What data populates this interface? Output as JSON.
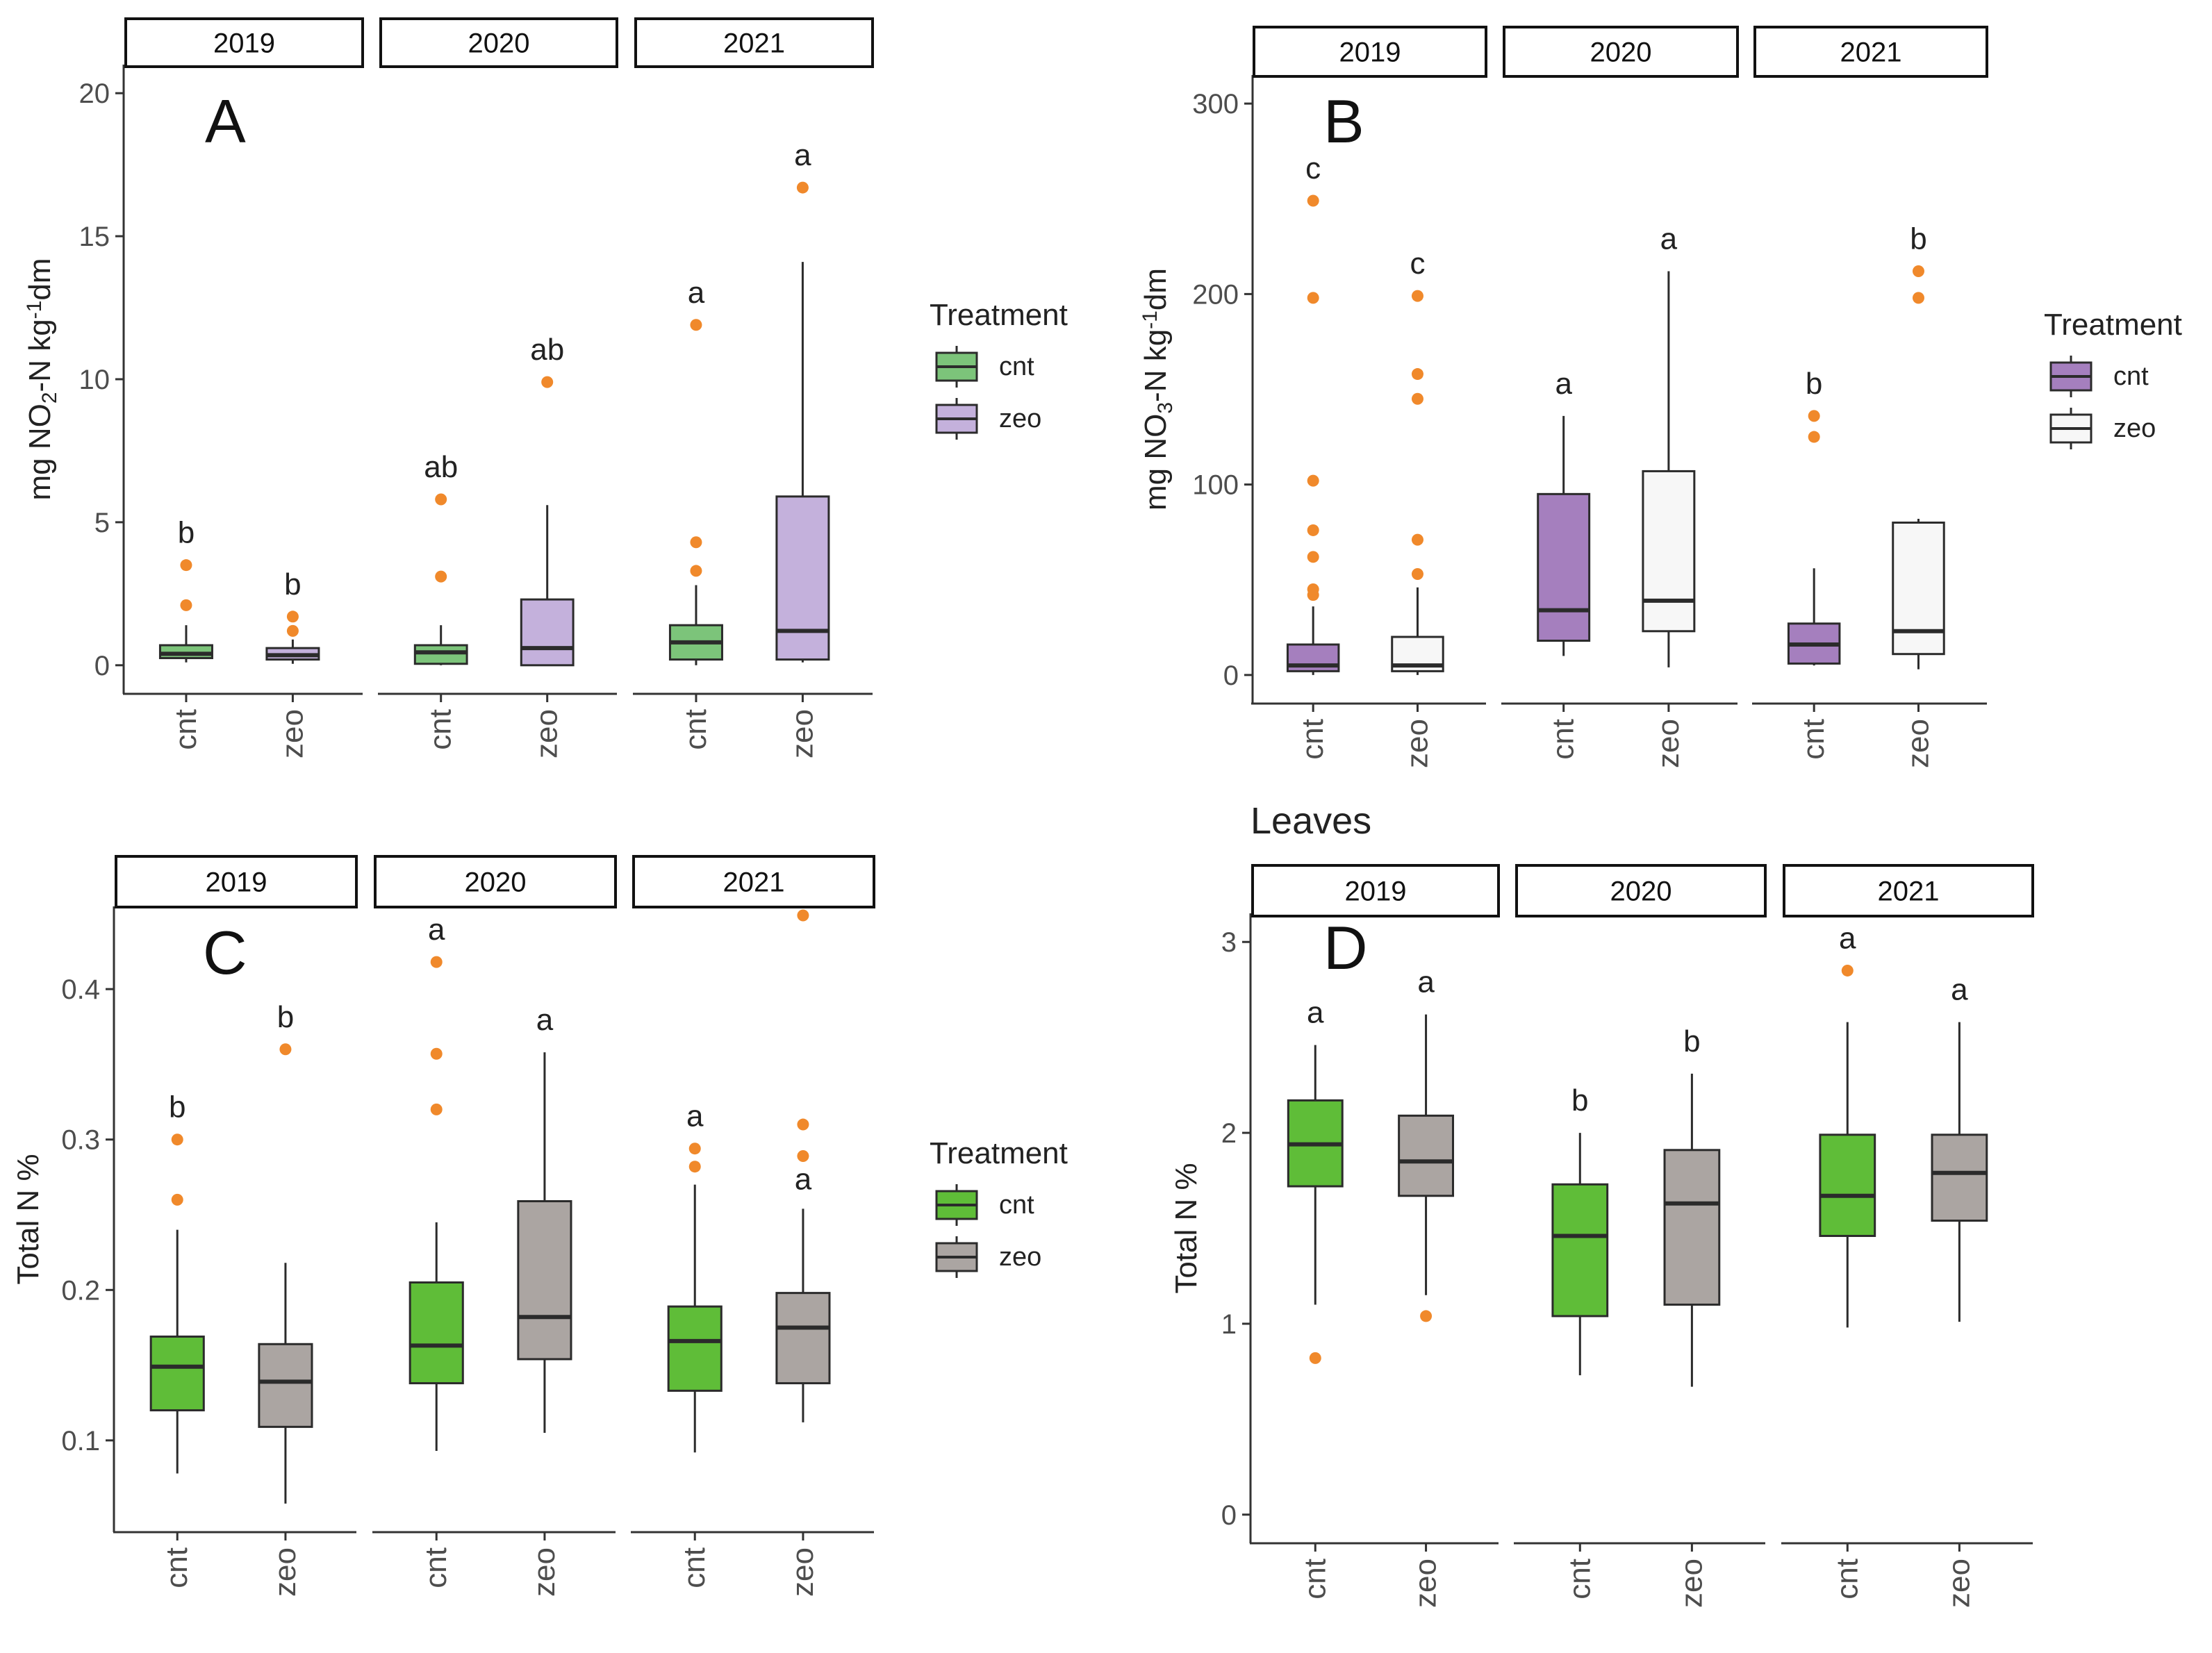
{
  "figure": {
    "palette": {
      "outlier": "#F0892B",
      "median": "#2B2B2B",
      "axis": "#333333",
      "green_light": "#7CC47A",
      "lavender": "#C4B1DC",
      "purple": "#A57FBE",
      "white_fill": "#F7F7F7",
      "green": "#5FBD38",
      "gray": "#ABA5A2"
    }
  },
  "chart_data": [
    {
      "type": "box",
      "panel_label": "A",
      "panel_title": "",
      "ylabel": "mg NO2-N kg-1dm",
      "ylim": [
        -1,
        21
      ],
      "yticks": [
        0,
        5,
        10,
        15,
        20
      ],
      "tick_labels": [
        "0",
        "5",
        "10",
        "15",
        "20"
      ],
      "facets": [
        "2019",
        "2020",
        "2021"
      ],
      "categories": [
        "cnt",
        "zeo"
      ],
      "legend": {
        "title": "Treatment",
        "entries": [
          {
            "label": "cnt",
            "color": "#7CC47A"
          },
          {
            "label": "zeo",
            "color": "#C4B1DC"
          }
        ]
      },
      "boxes": [
        {
          "facet": "2019",
          "group": "cnt",
          "whisker_low": 0.1,
          "q1": 0.25,
          "median": 0.4,
          "q3": 0.7,
          "whisker_high": 1.4,
          "outliers": [
            2.1,
            3.5
          ],
          "letter": "b"
        },
        {
          "facet": "2019",
          "group": "zeo",
          "whisker_low": 0.05,
          "q1": 0.2,
          "median": 0.35,
          "q3": 0.6,
          "whisker_high": 0.9,
          "outliers": [
            1.2,
            1.7
          ],
          "letter": "b"
        },
        {
          "facet": "2020",
          "group": "cnt",
          "whisker_low": 0.0,
          "q1": 0.05,
          "median": 0.45,
          "q3": 0.7,
          "whisker_high": 1.4,
          "outliers": [
            3.1,
            5.8
          ],
          "letter": "ab"
        },
        {
          "facet": "2020",
          "group": "zeo",
          "whisker_low": 0.0,
          "q1": 0.0,
          "median": 0.6,
          "q3": 2.3,
          "whisker_high": 5.6,
          "outliers": [
            9.9
          ],
          "letter": "ab"
        },
        {
          "facet": "2021",
          "group": "cnt",
          "whisker_low": 0.0,
          "q1": 0.2,
          "median": 0.8,
          "q3": 1.4,
          "whisker_high": 2.8,
          "outliers": [
            3.3,
            4.3,
            11.9
          ],
          "letter": "a"
        },
        {
          "facet": "2021",
          "group": "zeo",
          "whisker_low": 0.1,
          "q1": 0.2,
          "median": 1.2,
          "q3": 5.9,
          "whisker_high": 14.1,
          "outliers": [
            16.7
          ],
          "letter": "a"
        }
      ]
    },
    {
      "type": "box",
      "panel_label": "B",
      "panel_title": "",
      "ylabel": "mg NO3-N kg-1dm",
      "ylim": [
        -15,
        315
      ],
      "yticks": [
        0,
        100,
        200,
        300
      ],
      "tick_labels": [
        "0",
        "100",
        "200",
        "300"
      ],
      "facets": [
        "2019",
        "2020",
        "2021"
      ],
      "categories": [
        "cnt",
        "zeo"
      ],
      "legend": {
        "title": "Treatment",
        "entries": [
          {
            "label": "cnt",
            "color": "#A57FBE"
          },
          {
            "label": "zeo",
            "color": "#F7F7F7"
          }
        ]
      },
      "boxes": [
        {
          "facet": "2019",
          "group": "cnt",
          "whisker_low": 0,
          "q1": 2,
          "median": 5,
          "q3": 16,
          "whisker_high": 36,
          "outliers": [
            42,
            45,
            62,
            76,
            102,
            198,
            249
          ],
          "letter": "c"
        },
        {
          "facet": "2019",
          "group": "zeo",
          "whisker_low": 0,
          "q1": 2,
          "median": 5,
          "q3": 20,
          "whisker_high": 46,
          "outliers": [
            53,
            71,
            145,
            158,
            199
          ],
          "letter": "c"
        },
        {
          "facet": "2020",
          "group": "cnt",
          "whisker_low": 10,
          "q1": 18,
          "median": 34,
          "q3": 95,
          "whisker_high": 136,
          "outliers": [],
          "letter": "a"
        },
        {
          "facet": "2020",
          "group": "zeo",
          "whisker_low": 4,
          "q1": 23,
          "median": 39,
          "q3": 107,
          "whisker_high": 212,
          "outliers": [],
          "letter": "a"
        },
        {
          "facet": "2021",
          "group": "cnt",
          "whisker_low": 5,
          "q1": 6,
          "median": 16,
          "q3": 27,
          "whisker_high": 56,
          "outliers": [
            125,
            136
          ],
          "letter": "b"
        },
        {
          "facet": "2021",
          "group": "zeo",
          "whisker_low": 3,
          "q1": 11,
          "median": 23,
          "q3": 80,
          "whisker_high": 82,
          "outliers": [
            198,
            212
          ],
          "letter": "b"
        }
      ]
    },
    {
      "type": "box",
      "panel_label": "C",
      "panel_title": "",
      "ylabel": "Total N %",
      "ylim": [
        0.039,
        0.455
      ],
      "yticks": [
        0.1,
        0.2,
        0.3,
        0.4
      ],
      "tick_labels": [
        "0.1",
        "0.2",
        "0.3",
        "0.4"
      ],
      "facets": [
        "2019",
        "2020",
        "2021"
      ],
      "categories": [
        "cnt",
        "zeo"
      ],
      "legend": {
        "title": "Treatment",
        "entries": [
          {
            "label": "cnt",
            "color": "#5FBD38"
          },
          {
            "label": "zeo",
            "color": "#ABA5A2"
          }
        ]
      },
      "boxes": [
        {
          "facet": "2019",
          "group": "cnt",
          "whisker_low": 0.078,
          "q1": 0.12,
          "median": 0.149,
          "q3": 0.169,
          "whisker_high": 0.24,
          "outliers": [
            0.26,
            0.3
          ],
          "letter": "b"
        },
        {
          "facet": "2019",
          "group": "zeo",
          "whisker_low": 0.058,
          "q1": 0.109,
          "median": 0.139,
          "q3": 0.164,
          "whisker_high": 0.218,
          "outliers": [
            0.36
          ],
          "letter": "b"
        },
        {
          "facet": "2020",
          "group": "cnt",
          "whisker_low": 0.093,
          "q1": 0.138,
          "median": 0.163,
          "q3": 0.205,
          "whisker_high": 0.245,
          "outliers": [
            0.32,
            0.357,
            0.418
          ],
          "letter": "a"
        },
        {
          "facet": "2020",
          "group": "zeo",
          "whisker_low": 0.105,
          "q1": 0.154,
          "median": 0.182,
          "q3": 0.259,
          "whisker_high": 0.358,
          "outliers": [],
          "letter": "a"
        },
        {
          "facet": "2021",
          "group": "cnt",
          "whisker_low": 0.092,
          "q1": 0.133,
          "median": 0.166,
          "q3": 0.189,
          "whisker_high": 0.27,
          "outliers": [
            0.282,
            0.294
          ],
          "letter": "a"
        },
        {
          "facet": "2021",
          "group": "zeo",
          "whisker_low": 0.112,
          "q1": 0.138,
          "median": 0.175,
          "q3": 0.198,
          "whisker_high": 0.254,
          "outliers": [
            0.289,
            0.31,
            0.449
          ],
          "letter": "a"
        }
      ]
    },
    {
      "type": "box",
      "panel_label": "D",
      "panel_title": "Leaves",
      "ylabel": "Total N %",
      "ylim": [
        -0.15,
        3.15
      ],
      "yticks": [
        0,
        1,
        2,
        3
      ],
      "tick_labels": [
        "0",
        "1",
        "2",
        "3"
      ],
      "facets": [
        "2019",
        "2020",
        "2021"
      ],
      "categories": [
        "cnt",
        "zeo"
      ],
      "legend": null,
      "boxes": [
        {
          "facet": "2019",
          "group": "cnt",
          "whisker_low": 1.1,
          "q1": 1.72,
          "median": 1.94,
          "q3": 2.17,
          "whisker_high": 2.46,
          "outliers": [
            0.82
          ],
          "letter": "a"
        },
        {
          "facet": "2019",
          "group": "zeo",
          "whisker_low": 1.15,
          "q1": 1.67,
          "median": 1.85,
          "q3": 2.09,
          "whisker_high": 2.62,
          "outliers": [
            1.04
          ],
          "letter": "a"
        },
        {
          "facet": "2020",
          "group": "cnt",
          "whisker_low": 0.73,
          "q1": 1.04,
          "median": 1.46,
          "q3": 1.73,
          "whisker_high": 2.0,
          "outliers": [],
          "letter": "b"
        },
        {
          "facet": "2020",
          "group": "zeo",
          "whisker_low": 0.67,
          "q1": 1.1,
          "median": 1.63,
          "q3": 1.91,
          "whisker_high": 2.31,
          "outliers": [],
          "letter": "b"
        },
        {
          "facet": "2021",
          "group": "cnt",
          "whisker_low": 0.98,
          "q1": 1.46,
          "median": 1.67,
          "q3": 1.99,
          "whisker_high": 2.58,
          "outliers": [
            2.85
          ],
          "letter": "a"
        },
        {
          "facet": "2021",
          "group": "zeo",
          "whisker_low": 1.01,
          "q1": 1.54,
          "median": 1.79,
          "q3": 1.99,
          "whisker_high": 2.58,
          "outliers": [],
          "letter": "a"
        }
      ]
    }
  ]
}
